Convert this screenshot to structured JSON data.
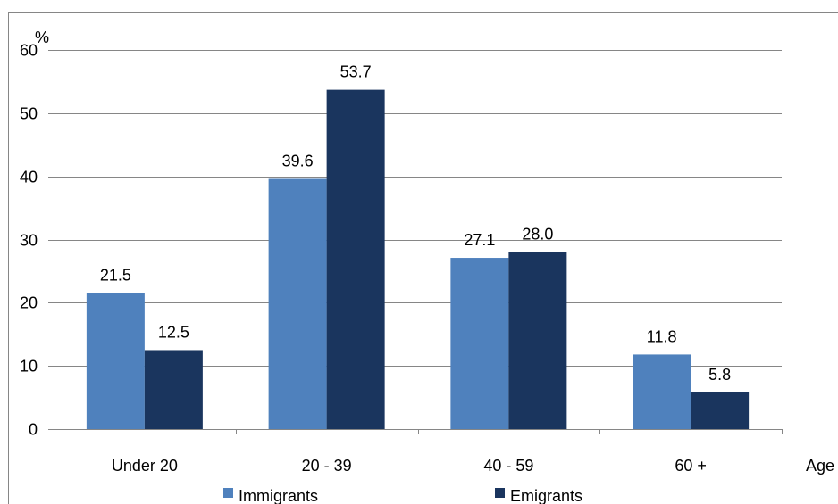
{
  "chart_data": {
    "type": "bar",
    "categories": [
      "Under 20",
      "20 - 39",
      "40 - 59",
      "60 +"
    ],
    "series": [
      {
        "name": "Immigrants",
        "values": [
          21.5,
          39.6,
          27.1,
          11.8
        ],
        "color": "#4F81BD"
      },
      {
        "name": "Emigrants",
        "values": [
          12.5,
          53.7,
          28.0,
          5.8
        ],
        "color": "#1A355E"
      }
    ],
    "data_labels": [
      [
        "21.5",
        "39.6",
        "27.1",
        "11.8"
      ],
      [
        "12.5",
        "53.7",
        "28.0",
        "5.8"
      ]
    ],
    "y_ticks": [
      "0",
      "10",
      "20",
      "30",
      "40",
      "50",
      "60"
    ],
    "ylim": [
      0,
      60
    ],
    "ylabel": "%",
    "xlabel": "Age",
    "grid": true,
    "legend_position": "bottom",
    "colors": {
      "gridline": "#868686",
      "axis": "#868686",
      "border": "#868686"
    }
  }
}
